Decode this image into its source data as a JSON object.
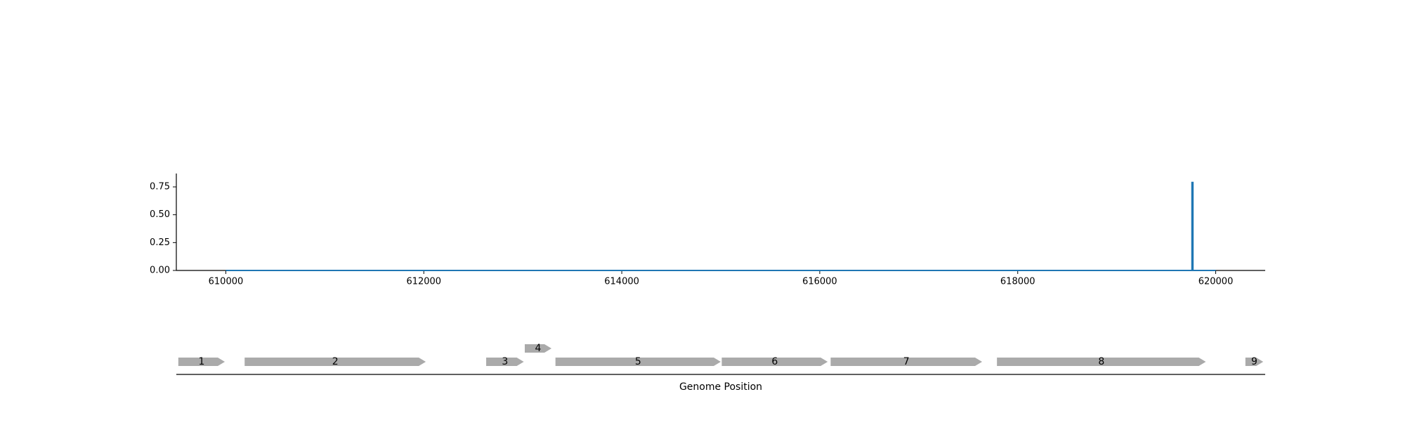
{
  "chart_data": [
    {
      "type": "line",
      "title": "",
      "xlabel": "",
      "ylabel": "",
      "xlim": [
        609500,
        620500
      ],
      "ylim": [
        0,
        0.87
      ],
      "x_ticks": [
        610000,
        612000,
        614000,
        616000,
        618000,
        620000
      ],
      "x_tick_labels": [
        "610000",
        "612000",
        "614000",
        "616000",
        "618000",
        "620000"
      ],
      "y_ticks": [
        0.0,
        0.25,
        0.5,
        0.75
      ],
      "y_tick_labels": [
        "0.00",
        "0.25",
        "0.50",
        "0.75"
      ],
      "grid": false,
      "series": [
        {
          "color": "#1f77b4",
          "x": [
            610000,
            619760,
            619760,
            619770,
            619770,
            620000
          ],
          "y": [
            0,
            0,
            0.79,
            0.79,
            0,
            0
          ]
        }
      ]
    },
    {
      "type": "gene_map",
      "xlabel": "Genome Position",
      "feature_color": "#aaaaaa",
      "features": [
        {
          "label": "1",
          "start": 609520,
          "end": 609990,
          "strand": "+",
          "row": 0
        },
        {
          "label": "2",
          "start": 610190,
          "end": 612020,
          "strand": "+",
          "row": 0
        },
        {
          "label": "3",
          "start": 612630,
          "end": 613010,
          "strand": "+",
          "row": 0
        },
        {
          "label": "4",
          "start": 613020,
          "end": 613290,
          "strand": "+",
          "row": 1
        },
        {
          "label": "5",
          "start": 613330,
          "end": 615000,
          "strand": "+",
          "row": 0
        },
        {
          "label": "6",
          "start": 615010,
          "end": 616080,
          "strand": "+",
          "row": 0
        },
        {
          "label": "7",
          "start": 616110,
          "end": 617640,
          "strand": "+",
          "row": 0
        },
        {
          "label": "8",
          "start": 617790,
          "end": 619900,
          "strand": "+",
          "row": 0
        },
        {
          "label": "9",
          "start": 620300,
          "end": 620480,
          "strand": "+",
          "row": 0
        }
      ]
    }
  ]
}
